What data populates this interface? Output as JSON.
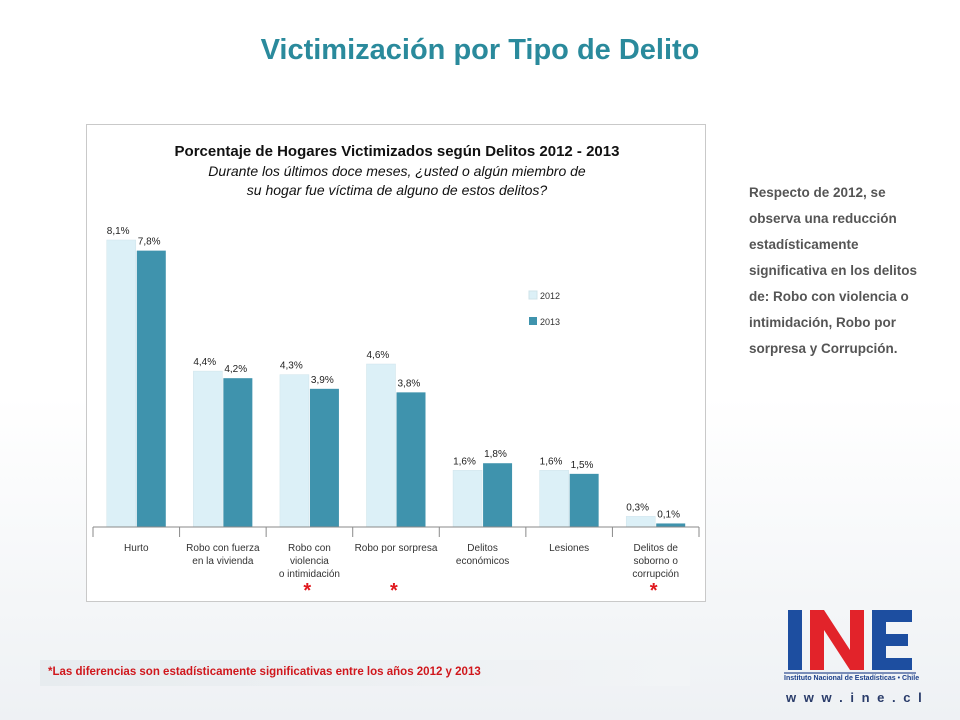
{
  "slide": {
    "title": "Victimización por Tipo de Delito",
    "side_text": "Respecto de 2012, se observa una reducción estadísticamente significativa en los delitos de: Robo con violencia o intimidación, Robo por sorpresa y Corrupción.",
    "footnote": "*Las diferencias son estadísticamente significativas entre los años 2012  y 2013",
    "asterisk": "*"
  },
  "logo": {
    "caption_line1": "Instituto Nacional de Estadísticas • Chile",
    "url": "w w w . i n e . c l"
  },
  "chart_data": {
    "type": "bar",
    "title": "Porcentaje de Hogares Victimizados según Delitos 2012 - 2013",
    "subtitle_lines": [
      "Durante los últimos doce meses, ¿usted o algún miembro de",
      "su hogar fue víctima de alguno de estos delitos?"
    ],
    "categories": [
      [
        "Hurto"
      ],
      [
        "Robo con fuerza",
        "en la vivienda"
      ],
      [
        "Robo con",
        "violencia",
        "o intimidación"
      ],
      [
        "Robo por sorpresa"
      ],
      [
        "Delitos",
        "económicos"
      ],
      [
        "Lesiones"
      ],
      [
        "Delitos de",
        "soborno o",
        "corrupción"
      ]
    ],
    "series": [
      {
        "name": "2012",
        "values": [
          8.1,
          4.4,
          4.3,
          4.6,
          1.6,
          1.6,
          0.3
        ],
        "labels": [
          "8,1%",
          "4,4%",
          "4,3%",
          "4,6%",
          "1,6%",
          "1,6%",
          "0,3%"
        ],
        "color": "#dcf0f7"
      },
      {
        "name": "2013",
        "values": [
          7.8,
          4.2,
          3.9,
          3.8,
          1.8,
          1.5,
          0.1
        ],
        "labels": [
          "7,8%",
          "4,2%",
          "3,9%",
          "3,8%",
          "1,8%",
          "1,5%",
          "0,1%"
        ],
        "color": "#3f93ad"
      }
    ],
    "significant_categories": [
      2,
      3,
      6
    ],
    "ylim": [
      0,
      8.1
    ],
    "grid": false,
    "legend_position": "right"
  }
}
